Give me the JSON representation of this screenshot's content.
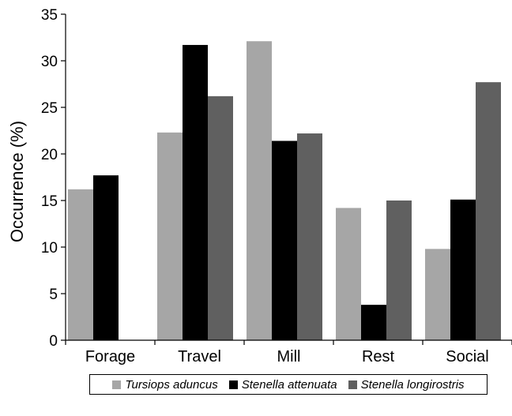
{
  "chart_data": {
    "type": "bar",
    "title": "",
    "xlabel": "",
    "ylabel": "Occurrence (%)",
    "ylim": [
      0,
      35
    ],
    "yticks": [
      0,
      5,
      10,
      15,
      20,
      25,
      30,
      35
    ],
    "categories": [
      "Forage",
      "Travel",
      "Mill",
      "Rest",
      "Social"
    ],
    "series": [
      {
        "name": "Tursiops aduncus",
        "color": "#a6a6a6",
        "values": [
          16.2,
          22.3,
          32.1,
          14.2,
          9.8
        ]
      },
      {
        "name": "Stenella attenuata",
        "color": "#000000",
        "values": [
          17.7,
          31.7,
          21.4,
          3.8,
          15.1
        ]
      },
      {
        "name": "Stenella longirostris",
        "color": "#606060",
        "values": [
          0,
          26.2,
          22.2,
          15.0,
          27.7
        ]
      }
    ],
    "grid": false,
    "legend_position": "bottom"
  }
}
